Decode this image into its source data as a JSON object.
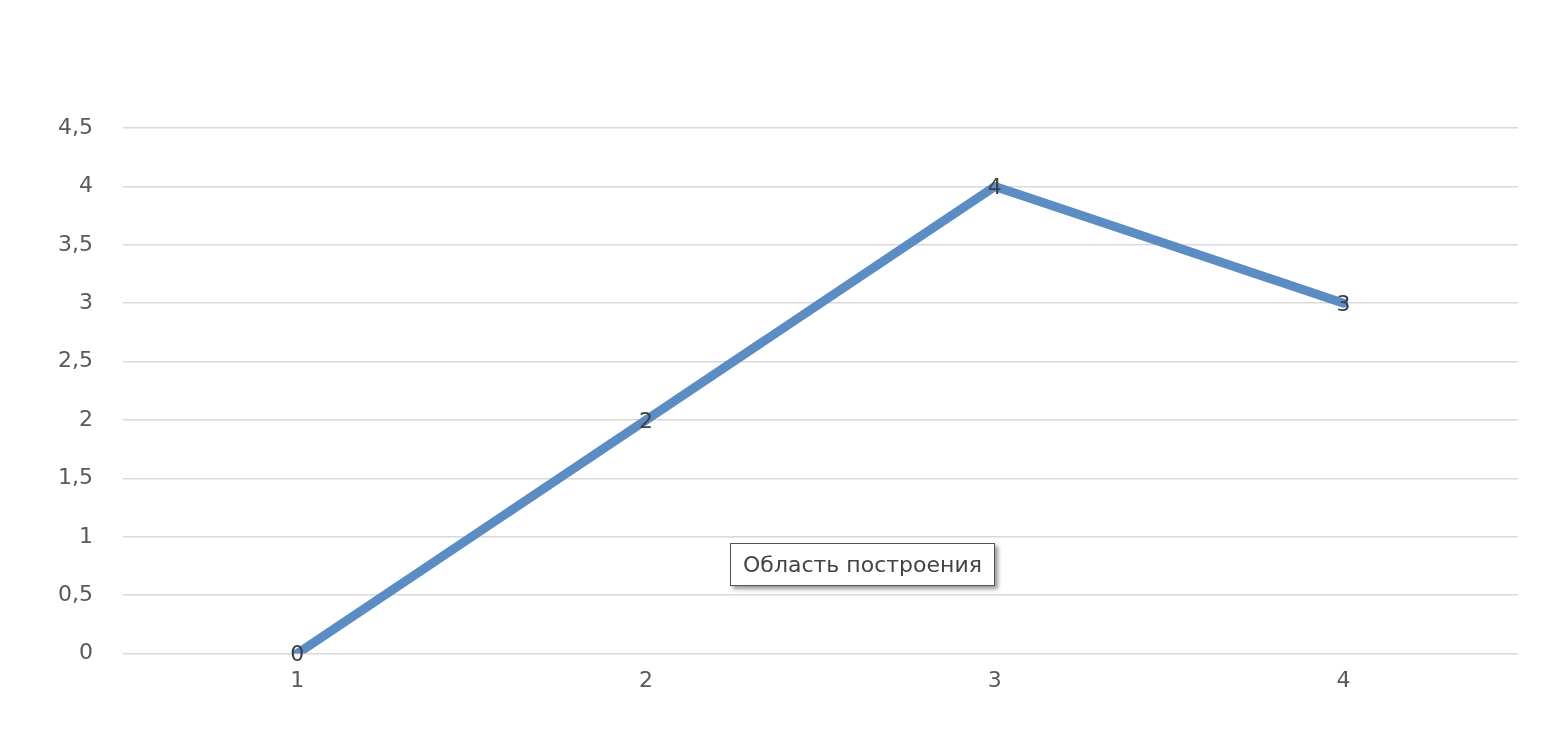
{
  "chart_data": {
    "type": "line",
    "categories": [
      "1",
      "2",
      "3",
      "4"
    ],
    "series": [
      {
        "color": "#5b8cc3",
        "values": [
          0,
          2,
          4,
          3
        ]
      }
    ],
    "ylim": [
      0,
      4.5
    ],
    "yticks": [
      0,
      {
        "value": 0.5,
        "label": "0,5"
      },
      1,
      {
        "value": 1.5,
        "label": "1,5"
      },
      2,
      {
        "value": 2.5,
        "label": "2,5"
      },
      3,
      {
        "value": 3.5,
        "label": "3,5"
      },
      4,
      {
        "value": 4.5,
        "label": "4,5"
      }
    ],
    "grid": "y",
    "legend": false,
    "marker": "none",
    "line_style": "solid",
    "data_labels": true,
    "annotations": [
      "Область построения"
    ]
  }
}
